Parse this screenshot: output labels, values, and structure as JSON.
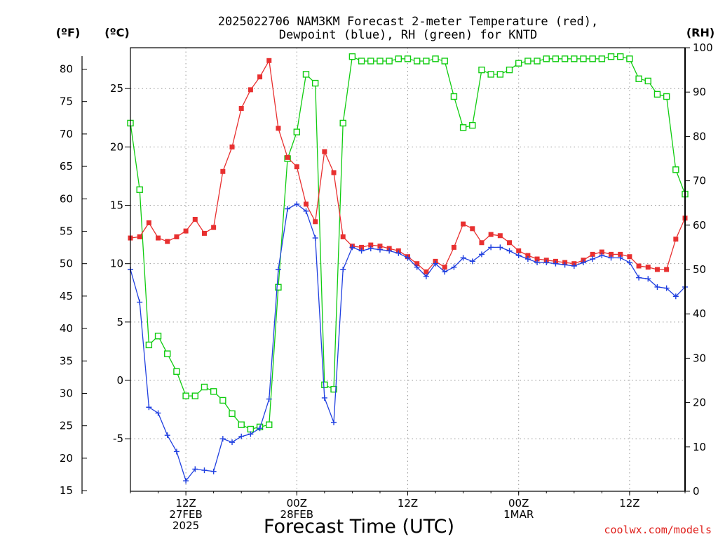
{
  "chart_data": {
    "type": "line",
    "title_line1": "2025022706 NAM3KM Forecast 2-meter Temperature (red),",
    "title_line2": "Dewpoint (blue), RH (green) for KNTD",
    "xlabel": "Forecast Time (UTC)",
    "credit": "coolwx.com/models",
    "units": {
      "fahrenheit": "(ºF)",
      "celsius": "(ºC)",
      "rh": "(RH)"
    },
    "celsius_range": [
      -9.5,
      28.5
    ],
    "rh_range": [
      0,
      100
    ],
    "x_range_hours": [
      0,
      60
    ],
    "grid": true,
    "x_ticks": [
      {
        "hour": 6,
        "lines": [
          "12Z",
          "27FEB",
          "2025"
        ]
      },
      {
        "hour": 18,
        "lines": [
          "00Z",
          "28FEB"
        ]
      },
      {
        "hour": 30,
        "lines": [
          "12Z"
        ]
      },
      {
        "hour": 42,
        "lines": [
          "00Z",
          "1MAR"
        ]
      },
      {
        "hour": 54,
        "lines": [
          "12Z"
        ]
      }
    ],
    "celsius_ticks": [
      -5,
      0,
      5,
      10,
      15,
      20,
      25
    ],
    "fahrenheit_ticks": [
      15,
      20,
      25,
      30,
      35,
      40,
      45,
      50,
      55,
      60,
      65,
      70,
      75,
      80
    ],
    "rh_ticks": [
      0,
      10,
      20,
      30,
      40,
      50,
      60,
      70,
      80,
      90,
      100
    ],
    "x_hours": [
      0,
      1,
      2,
      3,
      4,
      5,
      6,
      7,
      8,
      9,
      10,
      11,
      12,
      13,
      14,
      15,
      16,
      17,
      18,
      19,
      20,
      21,
      22,
      23,
      24,
      25,
      26,
      27,
      28,
      29,
      30,
      31,
      32,
      33,
      34,
      35,
      36,
      37,
      38,
      39,
      40,
      41,
      42,
      43,
      44,
      45,
      46,
      47,
      48,
      49,
      50,
      51,
      52,
      53,
      54,
      55,
      56,
      57,
      58,
      59,
      60
    ],
    "series": [
      {
        "name": "Temperature",
        "axis": "celsius",
        "color": "#e83030",
        "marker": "filled-square",
        "values": [
          12.2,
          12.3,
          13.5,
          12.2,
          11.9,
          12.3,
          12.8,
          13.8,
          12.6,
          13.1,
          17.9,
          20.0,
          23.3,
          24.9,
          26.0,
          27.4,
          21.6,
          19.1,
          18.3,
          15.1,
          13.6,
          19.6,
          17.8,
          12.3,
          11.5,
          11.4,
          11.6,
          11.5,
          11.3,
          11.1,
          10.6,
          10.0,
          9.3,
          10.2,
          9.7,
          11.4,
          13.4,
          13.0,
          11.8,
          12.5,
          12.4,
          11.8,
          11.1,
          10.7,
          10.4,
          10.3,
          10.2,
          10.1,
          10.0,
          10.3,
          10.8,
          11.0,
          10.8,
          10.8,
          10.6,
          9.8,
          9.7,
          9.5,
          9.5,
          12.1,
          13.9
        ]
      },
      {
        "name": "Dewpoint",
        "axis": "celsius",
        "color": "#2040e0",
        "marker": "plus",
        "values": [
          9.5,
          6.7,
          -2.3,
          -2.8,
          -4.7,
          -6.1,
          -8.6,
          -7.6,
          -7.7,
          -7.8,
          -5.0,
          -5.3,
          -4.8,
          -4.6,
          -4.1,
          -1.6,
          9.5,
          14.7,
          15.1,
          14.5,
          12.2,
          -1.5,
          -3.6,
          9.5,
          11.4,
          11.1,
          11.3,
          11.2,
          11.1,
          10.9,
          10.5,
          9.7,
          8.9,
          10.0,
          9.3,
          9.7,
          10.5,
          10.2,
          10.8,
          11.4,
          11.4,
          11.1,
          10.7,
          10.4,
          10.1,
          10.1,
          10.0,
          9.9,
          9.8,
          10.1,
          10.4,
          10.7,
          10.5,
          10.5,
          10.1,
          8.8,
          8.7,
          8.0,
          7.9,
          7.2,
          8.0
        ]
      },
      {
        "name": "RH",
        "axis": "rh",
        "color": "#10cc10",
        "marker": "open-square",
        "values": [
          83,
          68,
          33,
          35,
          31,
          27,
          21.5,
          21.5,
          23.5,
          22.5,
          20.5,
          17.5,
          15,
          14,
          14.5,
          15,
          46,
          75,
          81,
          94,
          92,
          24,
          23,
          83,
          98,
          97,
          97,
          97,
          97,
          97.5,
          97.5,
          97,
          97,
          97.5,
          97,
          89,
          82,
          82.5,
          95,
          94,
          94,
          95,
          96.5,
          97,
          97,
          97.5,
          97.5,
          97.5,
          97.5,
          97.5,
          97.5,
          97.5,
          98,
          98,
          97.5,
          93,
          92.5,
          89.5,
          89,
          72.5,
          67
        ]
      }
    ]
  }
}
